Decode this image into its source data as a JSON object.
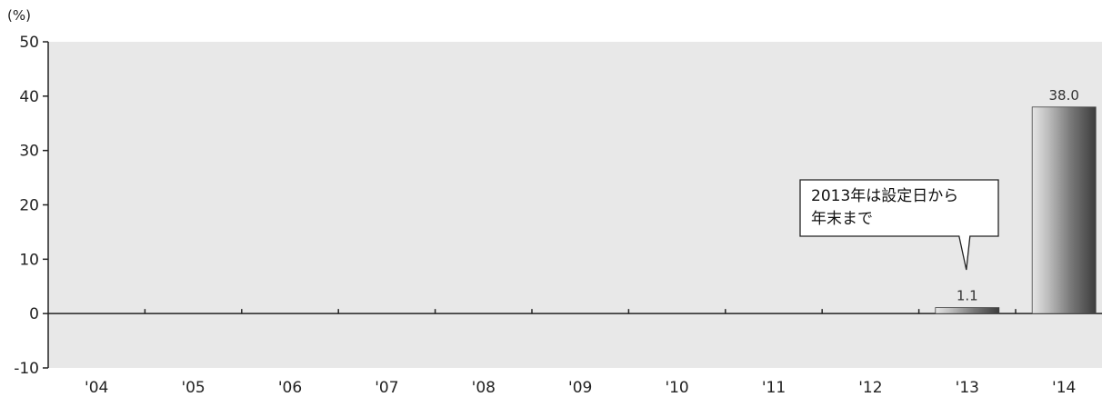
{
  "chart_data": {
    "type": "bar",
    "unit_label": "(%)",
    "categories": [
      "'04",
      "'05",
      "'06",
      "'07",
      "'08",
      "'09",
      "'10",
      "'11",
      "'12",
      "'13",
      "'14"
    ],
    "series": [
      {
        "values": [
          null,
          null,
          null,
          null,
          null,
          null,
          null,
          null,
          null,
          1.1,
          38.0
        ]
      }
    ],
    "data_labels": [
      "",
      "",
      "",
      "",
      "",
      "",
      "",
      "",
      "",
      "1.1",
      "38.0"
    ],
    "ylim": [
      -10,
      50
    ],
    "yticks": [
      -10,
      0,
      10,
      20,
      30,
      40,
      50
    ],
    "grid": false,
    "annotation": {
      "category": "'13",
      "lines": [
        "2013年は設定日から",
        "年末まで"
      ]
    }
  }
}
